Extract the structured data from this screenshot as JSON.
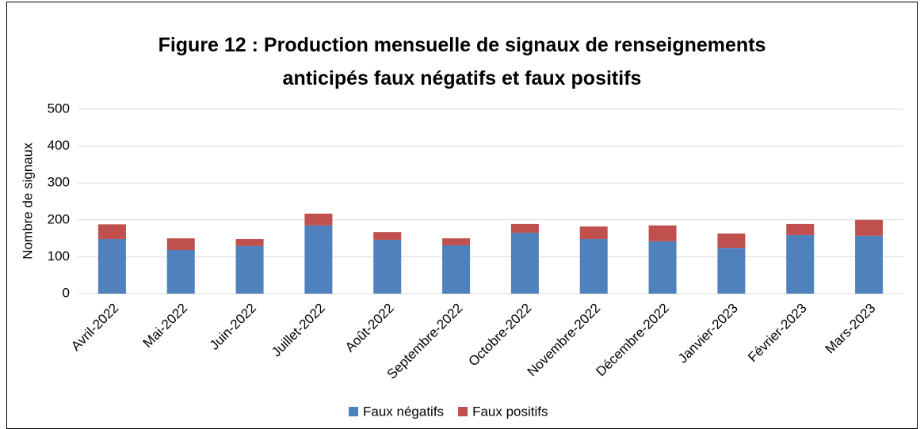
{
  "chart_data": {
    "type": "stacked_bar",
    "title": "Figure 12 : Production mensuelle de signaux de renseignements anticipés faux négatifs et faux positifs",
    "y_label": "Nombre de signaux",
    "categories": [
      "Avril-2022",
      "Mai-2022",
      "Juin-2022",
      "Juillet-2022",
      "Août-2022",
      "Septembre-2022",
      "Octobre-2022",
      "Novembre-2022",
      "Décembre-2022",
      "Janvier-2023",
      "Février-2023",
      "Mars-2023"
    ],
    "series": [
      {
        "name": "Faux négatifs",
        "color": "#4f81bd",
        "values": [
          148,
          118,
          129,
          185,
          146,
          131,
          165,
          148,
          142,
          124,
          159,
          157
        ]
      },
      {
        "name": "Faux positifs",
        "color": "#c0504d",
        "values": [
          40,
          32,
          19,
          32,
          21,
          19,
          24,
          34,
          43,
          39,
          30,
          43
        ]
      }
    ],
    "ylim": [
      0,
      500
    ],
    "yticks": [
      0,
      100,
      200,
      300,
      400,
      500
    ],
    "grid": true,
    "legend": "bottom"
  }
}
